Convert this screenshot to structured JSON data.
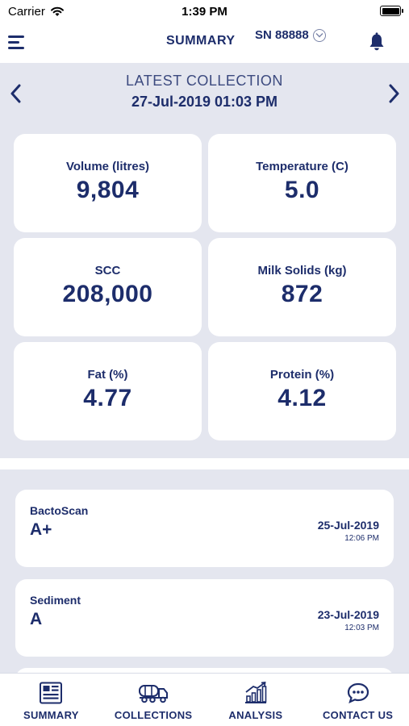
{
  "status_bar": {
    "carrier": "Carrier",
    "time": "1:39 PM"
  },
  "header": {
    "title": "SUMMARY",
    "serial": "SN 88888"
  },
  "latest": {
    "title": "LATEST COLLECTION",
    "date": "27-Jul-2019 01:03 PM"
  },
  "metrics": [
    {
      "label": "Volume (litres)",
      "value": "9,804"
    },
    {
      "label": "Temperature (C)",
      "value": "5.0"
    },
    {
      "label": "SCC",
      "value": "208,000"
    },
    {
      "label": "Milk Solids (kg)",
      "value": "872"
    },
    {
      "label": "Fat (%)",
      "value": "4.77"
    },
    {
      "label": "Protein (%)",
      "value": "4.12"
    }
  ],
  "results": [
    {
      "name": "BactoScan",
      "grade": "A+",
      "date": "25-Jul-2019",
      "time": "12:06 PM"
    },
    {
      "name": "Sediment",
      "grade": "A",
      "date": "23-Jul-2019",
      "time": "12:03 PM"
    }
  ],
  "tabs": [
    {
      "label": "SUMMARY",
      "icon": "summary-icon"
    },
    {
      "label": "COLLECTIONS",
      "icon": "tanker-truck-icon"
    },
    {
      "label": "ANALYSIS",
      "icon": "chart-icon"
    },
    {
      "label": "CONTACT US",
      "icon": "chat-icon"
    }
  ],
  "colors": {
    "brand": "#1d2d6b",
    "background": "#e4e6ef",
    "card": "#ffffff"
  }
}
